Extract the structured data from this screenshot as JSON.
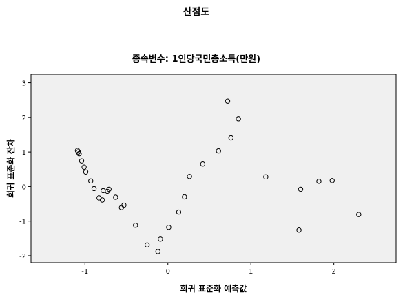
{
  "window": {
    "title": "산점도"
  },
  "chart_data": {
    "type": "scatter",
    "title": "산점도",
    "subtitle": "종속변수: 1인당국민총소득(만원)",
    "xlabel": "회귀 표준화 예측값",
    "ylabel": "회귀 표준화 잔차",
    "xlim": [
      -1.65,
      2.75
    ],
    "ylim": [
      -2.2,
      3.25
    ],
    "x_ticks": [
      -1,
      0,
      1,
      2
    ],
    "y_ticks": [
      -2,
      -1,
      0,
      1,
      2,
      3
    ],
    "x_tick_labels": [
      "-1",
      "0",
      "1",
      "2"
    ],
    "y_tick_labels": [
      "-2",
      "-1",
      "0",
      "1",
      "2",
      "3"
    ],
    "grid": false,
    "legend": "none",
    "colors": {
      "plot_background": "#f0f0f0",
      "marker_stroke": "#000000",
      "marker_fill": "none"
    },
    "points": [
      {
        "x": -1.09,
        "y": 1.04
      },
      {
        "x": -1.08,
        "y": 1.0
      },
      {
        "x": -1.07,
        "y": 0.95
      },
      {
        "x": -1.04,
        "y": 0.74
      },
      {
        "x": -1.01,
        "y": 0.56
      },
      {
        "x": -0.99,
        "y": 0.42
      },
      {
        "x": -0.93,
        "y": 0.16
      },
      {
        "x": -0.89,
        "y": -0.06
      },
      {
        "x": -0.83,
        "y": -0.33
      },
      {
        "x": -0.79,
        "y": -0.39
      },
      {
        "x": -0.78,
        "y": -0.12
      },
      {
        "x": -0.73,
        "y": -0.14
      },
      {
        "x": -0.71,
        "y": -0.08
      },
      {
        "x": -0.63,
        "y": -0.31
      },
      {
        "x": -0.56,
        "y": -0.61
      },
      {
        "x": -0.53,
        "y": -0.54
      },
      {
        "x": -0.39,
        "y": -1.12
      },
      {
        "x": -0.25,
        "y": -1.69
      },
      {
        "x": -0.12,
        "y": -1.88
      },
      {
        "x": -0.09,
        "y": -1.52
      },
      {
        "x": 0.01,
        "y": -1.18
      },
      {
        "x": 0.13,
        "y": -0.74
      },
      {
        "x": 0.2,
        "y": -0.3
      },
      {
        "x": 0.26,
        "y": 0.29
      },
      {
        "x": 0.42,
        "y": 0.65
      },
      {
        "x": 0.61,
        "y": 1.03
      },
      {
        "x": 0.72,
        "y": 2.47
      },
      {
        "x": 0.76,
        "y": 1.41
      },
      {
        "x": 0.85,
        "y": 1.96
      },
      {
        "x": 1.18,
        "y": 0.28
      },
      {
        "x": 1.58,
        "y": -1.26
      },
      {
        "x": 1.6,
        "y": -0.08
      },
      {
        "x": 1.82,
        "y": 0.15
      },
      {
        "x": 1.98,
        "y": 0.17
      },
      {
        "x": 2.3,
        "y": -0.81
      }
    ]
  }
}
